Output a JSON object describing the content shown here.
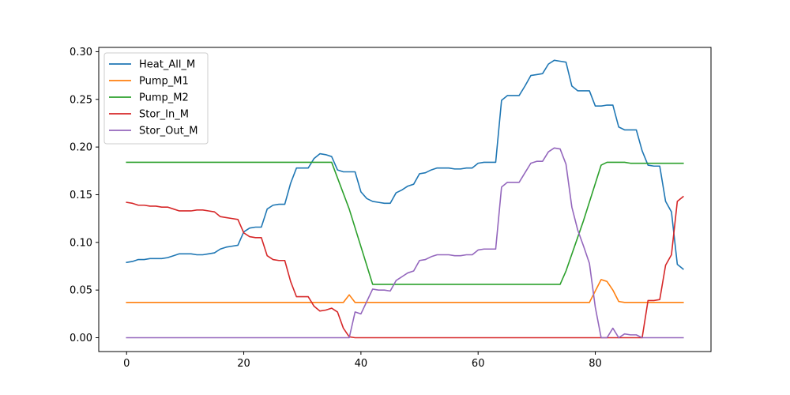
{
  "chart_data": {
    "type": "line",
    "title": "",
    "xlabel": "",
    "ylabel": "",
    "xlim": [
      -4.75,
      99.75
    ],
    "ylim": [
      -0.0145,
      0.3045
    ],
    "xticks": [
      0,
      20,
      40,
      60,
      80
    ],
    "yticks": [
      0.0,
      0.05,
      0.1,
      0.15,
      0.2,
      0.25,
      0.3
    ],
    "ytick_labels": [
      "0.00",
      "0.05",
      "0.10",
      "0.15",
      "0.20",
      "0.25",
      "0.30"
    ],
    "grid": false,
    "legend_position": "top-left",
    "series": [
      {
        "name": "Heat_All_M",
        "color": "#1f77b4",
        "points": [
          [
            0,
            0.079
          ],
          [
            1,
            0.08
          ],
          [
            2,
            0.082
          ],
          [
            3,
            0.082
          ],
          [
            4,
            0.083
          ],
          [
            5,
            0.083
          ],
          [
            6,
            0.083
          ],
          [
            7,
            0.084
          ],
          [
            8,
            0.086
          ],
          [
            9,
            0.088
          ],
          [
            10,
            0.088
          ],
          [
            11,
            0.088
          ],
          [
            12,
            0.087
          ],
          [
            13,
            0.087
          ],
          [
            14,
            0.088
          ],
          [
            15,
            0.089
          ],
          [
            16,
            0.093
          ],
          [
            17,
            0.095
          ],
          [
            18,
            0.096
          ],
          [
            19,
            0.097
          ],
          [
            20,
            0.111
          ],
          [
            21,
            0.115
          ],
          [
            22,
            0.116
          ],
          [
            23,
            0.116
          ],
          [
            24,
            0.135
          ],
          [
            25,
            0.139
          ],
          [
            26,
            0.14
          ],
          [
            27,
            0.14
          ],
          [
            28,
            0.162
          ],
          [
            29,
            0.178
          ],
          [
            30,
            0.178
          ],
          [
            31,
            0.178
          ],
          [
            32,
            0.188
          ],
          [
            33,
            0.193
          ],
          [
            34,
            0.192
          ],
          [
            35,
            0.19
          ],
          [
            36,
            0.176
          ],
          [
            37,
            0.174
          ],
          [
            38,
            0.174
          ],
          [
            39,
            0.174
          ],
          [
            40,
            0.153
          ],
          [
            41,
            0.146
          ],
          [
            42,
            0.143
          ],
          [
            43,
            0.142
          ],
          [
            44,
            0.141
          ],
          [
            45,
            0.141
          ],
          [
            46,
            0.152
          ],
          [
            47,
            0.155
          ],
          [
            48,
            0.159
          ],
          [
            49,
            0.161
          ],
          [
            50,
            0.172
          ],
          [
            51,
            0.173
          ],
          [
            52,
            0.176
          ],
          [
            53,
            0.178
          ],
          [
            54,
            0.178
          ],
          [
            55,
            0.178
          ],
          [
            56,
            0.177
          ],
          [
            57,
            0.177
          ],
          [
            58,
            0.178
          ],
          [
            59,
            0.178
          ],
          [
            60,
            0.183
          ],
          [
            61,
            0.184
          ],
          [
            62,
            0.184
          ],
          [
            63,
            0.184
          ],
          [
            64,
            0.249
          ],
          [
            65,
            0.254
          ],
          [
            66,
            0.254
          ],
          [
            67,
            0.254
          ],
          [
            68,
            0.264
          ],
          [
            69,
            0.275
          ],
          [
            70,
            0.276
          ],
          [
            71,
            0.277
          ],
          [
            72,
            0.287
          ],
          [
            73,
            0.291
          ],
          [
            74,
            0.29
          ],
          [
            75,
            0.289
          ],
          [
            76,
            0.264
          ],
          [
            77,
            0.259
          ],
          [
            78,
            0.259
          ],
          [
            79,
            0.259
          ],
          [
            80,
            0.243
          ],
          [
            81,
            0.243
          ],
          [
            82,
            0.244
          ],
          [
            83,
            0.244
          ],
          [
            84,
            0.221
          ],
          [
            85,
            0.218
          ],
          [
            86,
            0.218
          ],
          [
            87,
            0.218
          ],
          [
            88,
            0.196
          ],
          [
            89,
            0.181
          ],
          [
            90,
            0.18
          ],
          [
            91,
            0.18
          ],
          [
            92,
            0.143
          ],
          [
            93,
            0.132
          ],
          [
            94,
            0.077
          ],
          [
            95,
            0.072
          ]
        ]
      },
      {
        "name": "Pump_M1",
        "color": "#ff7f0e",
        "points": [
          [
            0,
            0.037
          ],
          [
            37,
            0.037
          ],
          [
            38,
            0.045
          ],
          [
            39,
            0.037
          ],
          [
            79,
            0.037
          ],
          [
            81,
            0.061
          ],
          [
            82,
            0.059
          ],
          [
            83,
            0.05
          ],
          [
            84,
            0.038
          ],
          [
            85,
            0.037
          ],
          [
            95,
            0.037
          ]
        ]
      },
      {
        "name": "Pump_M2",
        "color": "#2ca02c",
        "points": [
          [
            0,
            0.184
          ],
          [
            35,
            0.184
          ],
          [
            38,
            0.135
          ],
          [
            42,
            0.056
          ],
          [
            74,
            0.056
          ],
          [
            75,
            0.07
          ],
          [
            78,
            0.123
          ],
          [
            81,
            0.181
          ],
          [
            82,
            0.184
          ],
          [
            85,
            0.184
          ],
          [
            86,
            0.183
          ],
          [
            95,
            0.183
          ]
        ]
      },
      {
        "name": "Stor_In_M",
        "color": "#d62728",
        "points": [
          [
            0,
            0.142
          ],
          [
            1,
            0.141
          ],
          [
            2,
            0.139
          ],
          [
            3,
            0.139
          ],
          [
            4,
            0.138
          ],
          [
            5,
            0.138
          ],
          [
            6,
            0.137
          ],
          [
            7,
            0.137
          ],
          [
            8,
            0.135
          ],
          [
            9,
            0.133
          ],
          [
            10,
            0.133
          ],
          [
            11,
            0.133
          ],
          [
            12,
            0.134
          ],
          [
            13,
            0.134
          ],
          [
            14,
            0.133
          ],
          [
            15,
            0.132
          ],
          [
            16,
            0.127
          ],
          [
            17,
            0.126
          ],
          [
            18,
            0.125
          ],
          [
            19,
            0.124
          ],
          [
            20,
            0.11
          ],
          [
            21,
            0.106
          ],
          [
            22,
            0.105
          ],
          [
            23,
            0.105
          ],
          [
            24,
            0.086
          ],
          [
            25,
            0.082
          ],
          [
            26,
            0.081
          ],
          [
            27,
            0.081
          ],
          [
            28,
            0.059
          ],
          [
            29,
            0.043
          ],
          [
            30,
            0.043
          ],
          [
            31,
            0.043
          ],
          [
            32,
            0.033
          ],
          [
            33,
            0.028
          ],
          [
            34,
            0.029
          ],
          [
            35,
            0.031
          ],
          [
            36,
            0.027
          ],
          [
            37,
            0.01
          ],
          [
            38,
            0.001
          ],
          [
            39,
            0.0
          ],
          [
            88,
            0.0
          ],
          [
            89,
            0.039
          ],
          [
            90,
            0.039
          ],
          [
            91,
            0.04
          ],
          [
            92,
            0.076
          ],
          [
            93,
            0.087
          ],
          [
            94,
            0.143
          ],
          [
            95,
            0.148
          ]
        ]
      },
      {
        "name": "Stor_Out_M",
        "color": "#9467bd",
        "points": [
          [
            0,
            0.0
          ],
          [
            38,
            0.0
          ],
          [
            39,
            0.027
          ],
          [
            40,
            0.025
          ],
          [
            41,
            0.038
          ],
          [
            42,
            0.051
          ],
          [
            43,
            0.05
          ],
          [
            44,
            0.05
          ],
          [
            45,
            0.049
          ],
          [
            46,
            0.06
          ],
          [
            47,
            0.064
          ],
          [
            48,
            0.068
          ],
          [
            49,
            0.07
          ],
          [
            50,
            0.081
          ],
          [
            51,
            0.082
          ],
          [
            52,
            0.085
          ],
          [
            53,
            0.087
          ],
          [
            54,
            0.087
          ],
          [
            55,
            0.087
          ],
          [
            56,
            0.086
          ],
          [
            57,
            0.086
          ],
          [
            58,
            0.087
          ],
          [
            59,
            0.087
          ],
          [
            60,
            0.092
          ],
          [
            61,
            0.093
          ],
          [
            62,
            0.093
          ],
          [
            63,
            0.093
          ],
          [
            64,
            0.158
          ],
          [
            65,
            0.163
          ],
          [
            66,
            0.163
          ],
          [
            67,
            0.163
          ],
          [
            68,
            0.173
          ],
          [
            69,
            0.183
          ],
          [
            70,
            0.185
          ],
          [
            71,
            0.185
          ],
          [
            72,
            0.195
          ],
          [
            73,
            0.199
          ],
          [
            74,
            0.198
          ],
          [
            75,
            0.182
          ],
          [
            76,
            0.137
          ],
          [
            77,
            0.113
          ],
          [
            78,
            0.096
          ],
          [
            79,
            0.078
          ],
          [
            80,
            0.032
          ],
          [
            81,
            0.0
          ],
          [
            82,
            0.0
          ],
          [
            83,
            0.01
          ],
          [
            84,
            0.0
          ],
          [
            85,
            0.004
          ],
          [
            86,
            0.003
          ],
          [
            87,
            0.003
          ],
          [
            88,
            0.0
          ],
          [
            95,
            0.0
          ]
        ]
      }
    ]
  }
}
